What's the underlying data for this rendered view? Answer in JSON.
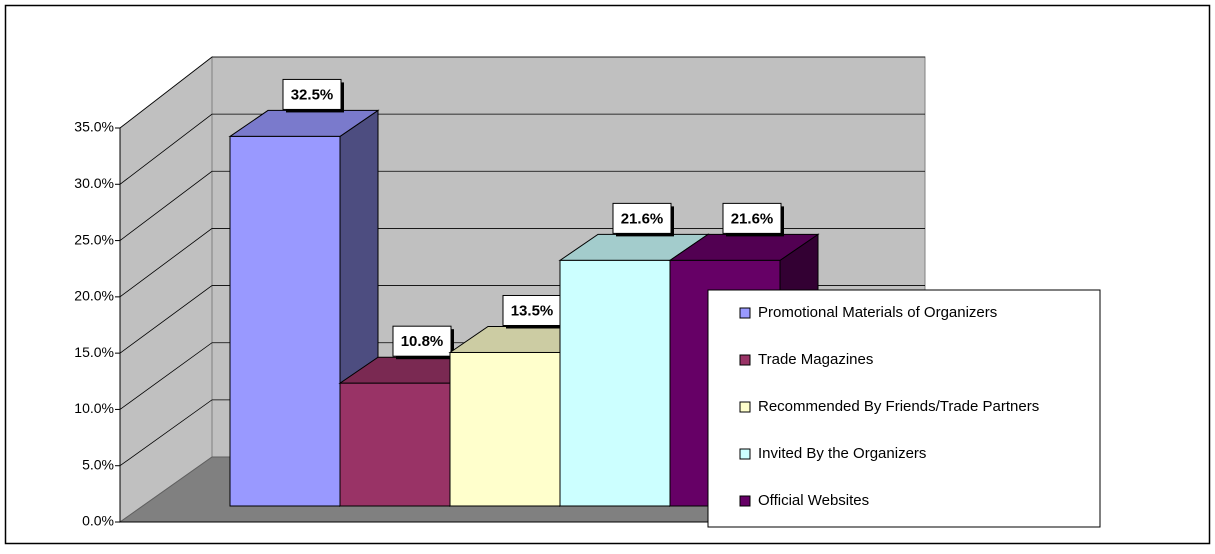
{
  "chart_data": {
    "type": "bar3d",
    "series": [
      {
        "name": "Promotional Materials of Organizers",
        "color": "#9999ff",
        "values": [
          32.5
        ],
        "value_labels": [
          "32.5%"
        ]
      },
      {
        "name": "Trade Magazines",
        "color": "#993366",
        "values": [
          10.8
        ],
        "value_labels": [
          "10.8%"
        ]
      },
      {
        "name": "Recommended By Friends/Trade Partners",
        "color": "#ffffcc",
        "values": [
          13.5
        ],
        "value_labels": [
          "13.5%"
        ]
      },
      {
        "name": "Invited By the Organizers",
        "color": "#ccffff",
        "values": [
          21.6
        ],
        "value_labels": [
          "21.6%"
        ]
      },
      {
        "name": "Official Websites",
        "color": "#660066",
        "values": [
          21.6
        ],
        "value_labels": [
          "21.6%"
        ]
      }
    ],
    "ylim": [
      0,
      35
    ],
    "yticks": [
      {
        "value": 0,
        "label": "0.0%"
      },
      {
        "value": 5,
        "label": "5.0%"
      },
      {
        "value": 10,
        "label": "10.0%"
      },
      {
        "value": 15,
        "label": "15.0%"
      },
      {
        "value": 20,
        "label": "20.0%"
      },
      {
        "value": 25,
        "label": "25.0%"
      },
      {
        "value": 30,
        "label": "30.0%"
      },
      {
        "value": 35,
        "label": "35.0%"
      }
    ],
    "grid": true,
    "legend": "right"
  }
}
